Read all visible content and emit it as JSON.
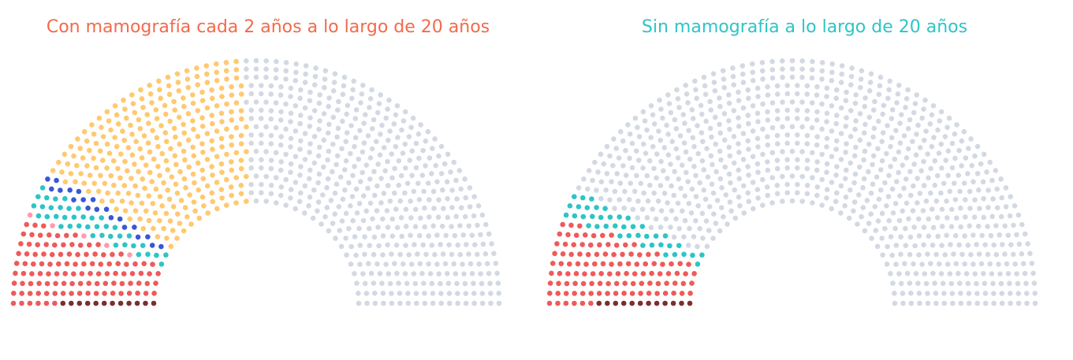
{
  "colors": {
    "title_left": "#f26a4b",
    "title_right": "#2ec4c6",
    "empty_seat": "#d3d9e3"
  },
  "chart_data": [
    {
      "type": "parliament",
      "title": "Con mamografía cada 2 años a lo largo de 20 años",
      "categories": [
        {
          "color": "#7a2f2f",
          "value": 12
        },
        {
          "color": "#ef5a5a",
          "value": 110
        },
        {
          "color": "#ff9ab0",
          "value": 5
        },
        {
          "color": "#2ec4c6",
          "value": 40
        },
        {
          "color": "#3a57d6",
          "value": 20
        },
        {
          "color": "#ffc970",
          "value": 295
        },
        {
          "color": "#d3d9e3",
          "value": 518
        }
      ]
    },
    {
      "type": "parliament",
      "title": "Sin mamografía a lo largo de 20 años",
      "categories": [
        {
          "color": "#7a2f2f",
          "value": 12
        },
        {
          "color": "#ef5a5a",
          "value": 110
        },
        {
          "color": "#2ec4c6",
          "value": 40
        },
        {
          "color": "#d3d9e3",
          "value": 838
        }
      ]
    }
  ]
}
